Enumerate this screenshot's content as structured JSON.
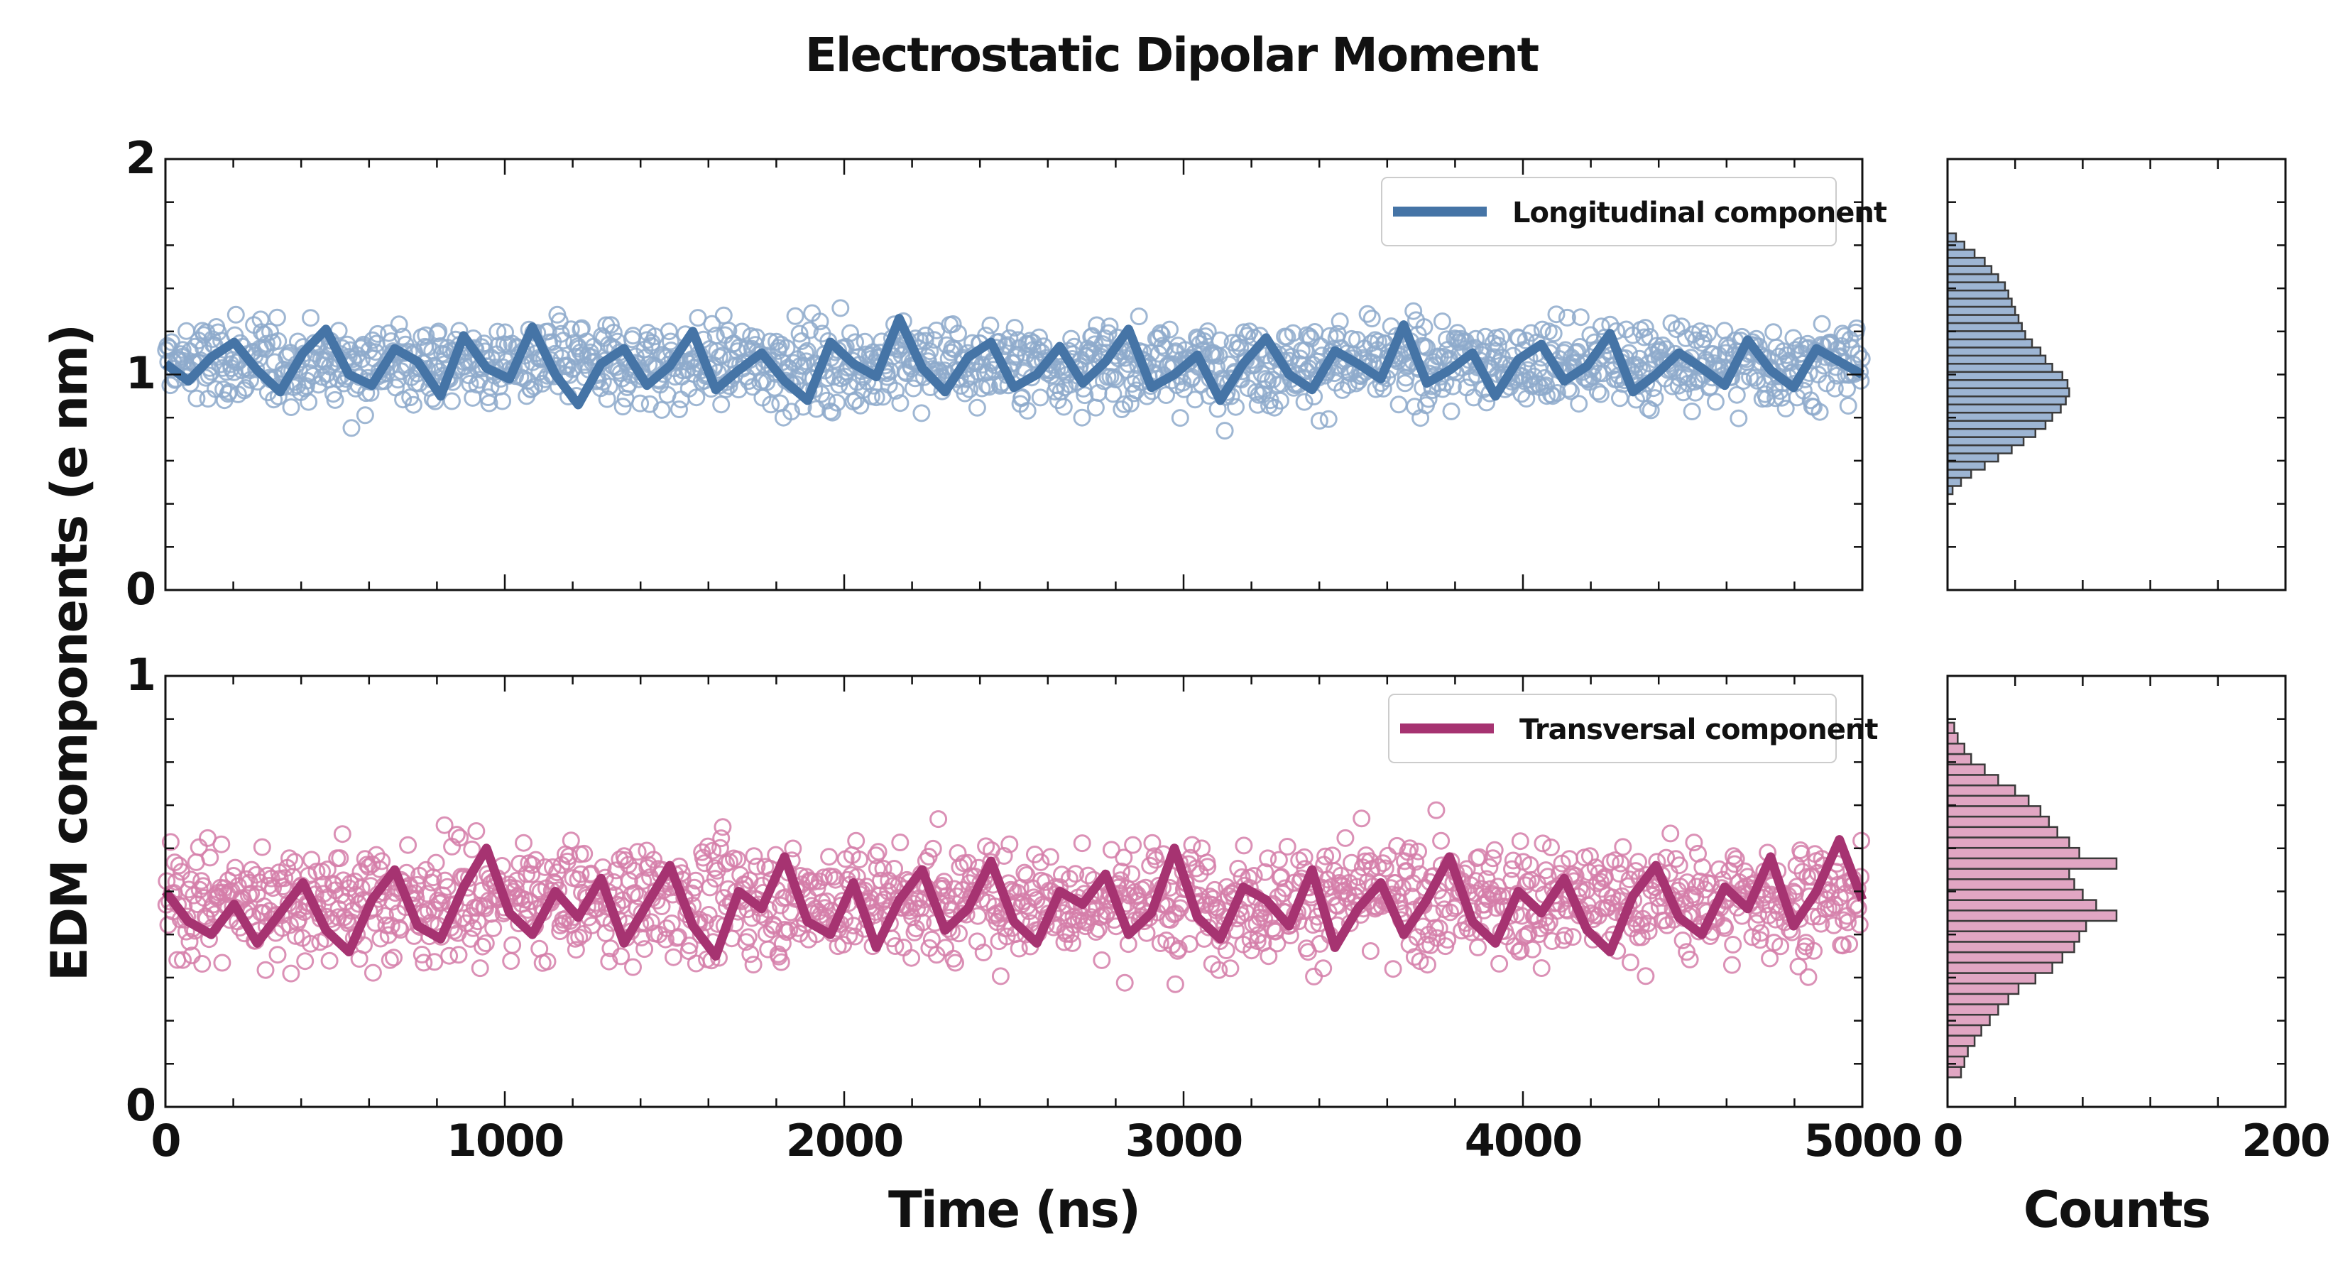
{
  "chart_data": {
    "type": "scatter",
    "title": "Electrostatic Dipolar Moment",
    "ylabel": "EDM components (e nm)",
    "xlabel": "Time (ns)",
    "hist_xlabel": "Counts",
    "xlim": [
      0,
      5000
    ],
    "x_ticks": [
      "0",
      "1000",
      "2000",
      "3000",
      "4000",
      "5000"
    ],
    "hist_xlim": [
      0,
      200
    ],
    "hist_ticks": [
      "0",
      "200"
    ],
    "panels": [
      {
        "name": "longitudinal",
        "series_name": "Longitudinal component",
        "color": "#4574a6",
        "marker_color": "#8eaacb",
        "hist_fill": "#9db5d3",
        "ylim": [
          0,
          2
        ],
        "y_ticks": [
          "0",
          "1",
          "2"
        ],
        "mean": 1.05,
        "spread": 0.25,
        "n_points": 1500,
        "running_mean": [
          1.05,
          0.97,
          1.08,
          1.15,
          1.02,
          0.92,
          1.1,
          1.21,
          1.0,
          0.95,
          1.12,
          1.06,
          0.9,
          1.18,
          1.03,
          0.98,
          1.22,
          1.0,
          0.86,
          1.05,
          1.12,
          0.95,
          1.04,
          1.2,
          0.93,
          1.02,
          1.1,
          0.97,
          0.88,
          1.15,
          1.05,
          0.99,
          1.26,
          1.03,
          0.92,
          1.08,
          1.15,
          0.94,
          1.0,
          1.13,
          0.96,
          1.06,
          1.21,
          0.94,
          1.0,
          1.09,
          0.88,
          1.05,
          1.17,
          1.0,
          0.93,
          1.11,
          1.05,
          0.98,
          1.23,
          0.96,
          1.02,
          1.1,
          0.9,
          1.07,
          1.14,
          0.97,
          1.04,
          1.19,
          0.92,
          1.0,
          1.1,
          1.03,
          0.95,
          1.16,
          1.02,
          0.94,
          1.12,
          1.06,
          1.0
        ],
        "hist_counts": [
          3,
          8,
          14,
          22,
          30,
          38,
          45,
          52,
          58,
          62,
          67,
          70,
          72,
          71,
          68,
          62,
          58,
          55,
          50,
          46,
          44,
          42,
          40,
          38,
          36,
          34,
          30,
          26,
          22,
          16,
          10,
          5
        ]
      },
      {
        "name": "transversal",
        "series_name": "Transversal component",
        "color": "#a63371",
        "marker_color": "#d57ea9",
        "hist_fill": "#e1a6c3",
        "ylim": [
          0,
          1
        ],
        "y_ticks": [
          "0",
          "1"
        ],
        "mean": 0.48,
        "spread": 0.17,
        "n_points": 1500,
        "running_mean": [
          0.5,
          0.43,
          0.4,
          0.47,
          0.38,
          0.45,
          0.52,
          0.41,
          0.36,
          0.48,
          0.55,
          0.42,
          0.39,
          0.51,
          0.6,
          0.45,
          0.4,
          0.5,
          0.44,
          0.53,
          0.38,
          0.47,
          0.56,
          0.42,
          0.35,
          0.5,
          0.46,
          0.58,
          0.43,
          0.4,
          0.52,
          0.37,
          0.48,
          0.55,
          0.41,
          0.46,
          0.57,
          0.43,
          0.38,
          0.5,
          0.47,
          0.54,
          0.4,
          0.45,
          0.6,
          0.44,
          0.39,
          0.51,
          0.48,
          0.42,
          0.55,
          0.37,
          0.46,
          0.52,
          0.4,
          0.48,
          0.58,
          0.43,
          0.38,
          0.5,
          0.45,
          0.53,
          0.41,
          0.36,
          0.49,
          0.56,
          0.44,
          0.4,
          0.51,
          0.46,
          0.58,
          0.42,
          0.5,
          0.62,
          0.48
        ],
        "hist_counts": [
          8,
          10,
          12,
          16,
          20,
          25,
          30,
          36,
          42,
          52,
          62,
          68,
          75,
          78,
          82,
          100,
          88,
          80,
          75,
          72,
          100,
          78,
          72,
          65,
          60,
          55,
          48,
          40,
          30,
          22,
          14,
          10,
          6,
          4
        ]
      }
    ]
  }
}
